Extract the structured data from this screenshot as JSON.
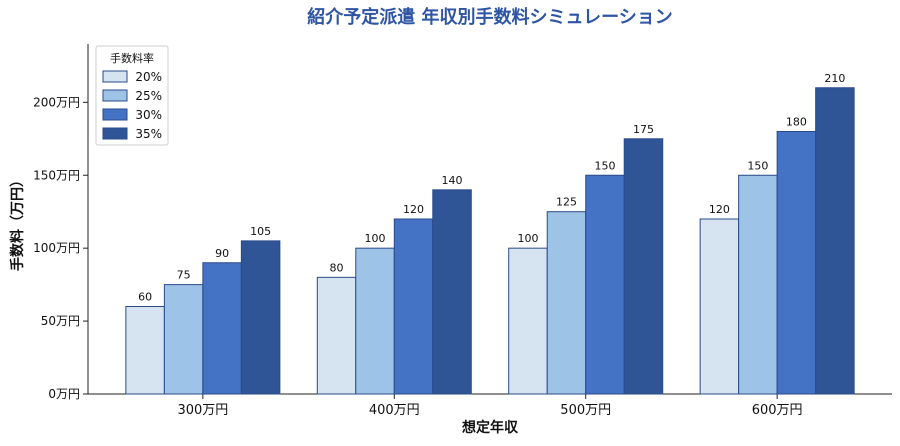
{
  "chart_data": {
    "type": "bar",
    "title": "紹介予定派遣 年収別手数料シミュレーション",
    "xlabel": "想定年収",
    "ylabel": "手数料（万円）",
    "categories": [
      "300万円",
      "400万円",
      "500万円",
      "600万円"
    ],
    "series": [
      {
        "name": "20%",
        "values": [
          60,
          80,
          100,
          120
        ],
        "color": "#d6e4f2"
      },
      {
        "name": "25%",
        "values": [
          75,
          100,
          125,
          150
        ],
        "color": "#9dc3e6"
      },
      {
        "name": "30%",
        "values": [
          90,
          120,
          150,
          180
        ],
        "color": "#4472c4"
      },
      {
        "name": "35%",
        "values": [
          105,
          140,
          175,
          210
        ],
        "color": "#2f5597"
      }
    ],
    "ylim": [
      0,
      240
    ],
    "yticks": [
      0,
      50,
      100,
      150,
      200
    ],
    "ytick_labels": [
      "0万円",
      "50万円",
      "100万円",
      "150万円",
      "200万円"
    ],
    "legend": {
      "title": "手数料率",
      "position": "top-left"
    },
    "grid": false
  }
}
